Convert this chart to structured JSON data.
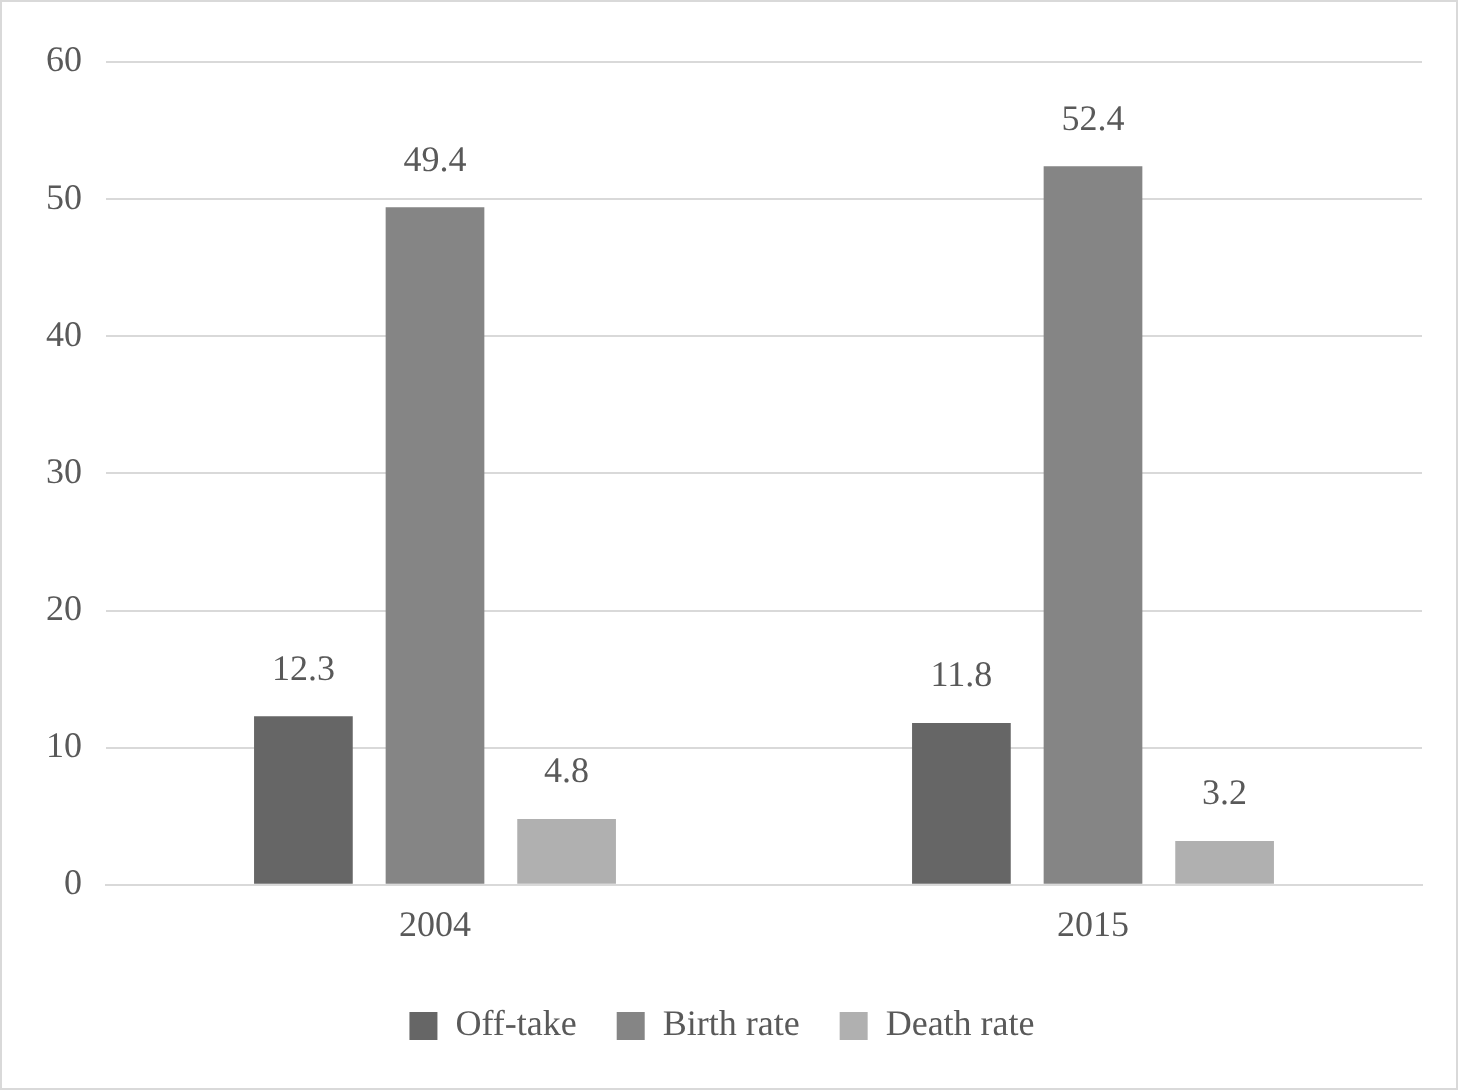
{
  "chart_data": {
    "type": "bar",
    "categories": [
      "2004",
      "2015"
    ],
    "series": [
      {
        "name": "Off-take",
        "color": "#666666",
        "values": [
          12.3,
          11.8
        ]
      },
      {
        "name": "Birth rate",
        "color": "#858585",
        "values": [
          49.4,
          52.4
        ]
      },
      {
        "name": "Death rate",
        "color": "#b0b0b0",
        "values": [
          4.8,
          3.2
        ]
      }
    ],
    "ylim": [
      0,
      60
    ],
    "yticks": [
      0,
      10,
      20,
      30,
      40,
      50,
      60
    ],
    "grid": "y",
    "legend": "bottom",
    "data_labels": true
  }
}
